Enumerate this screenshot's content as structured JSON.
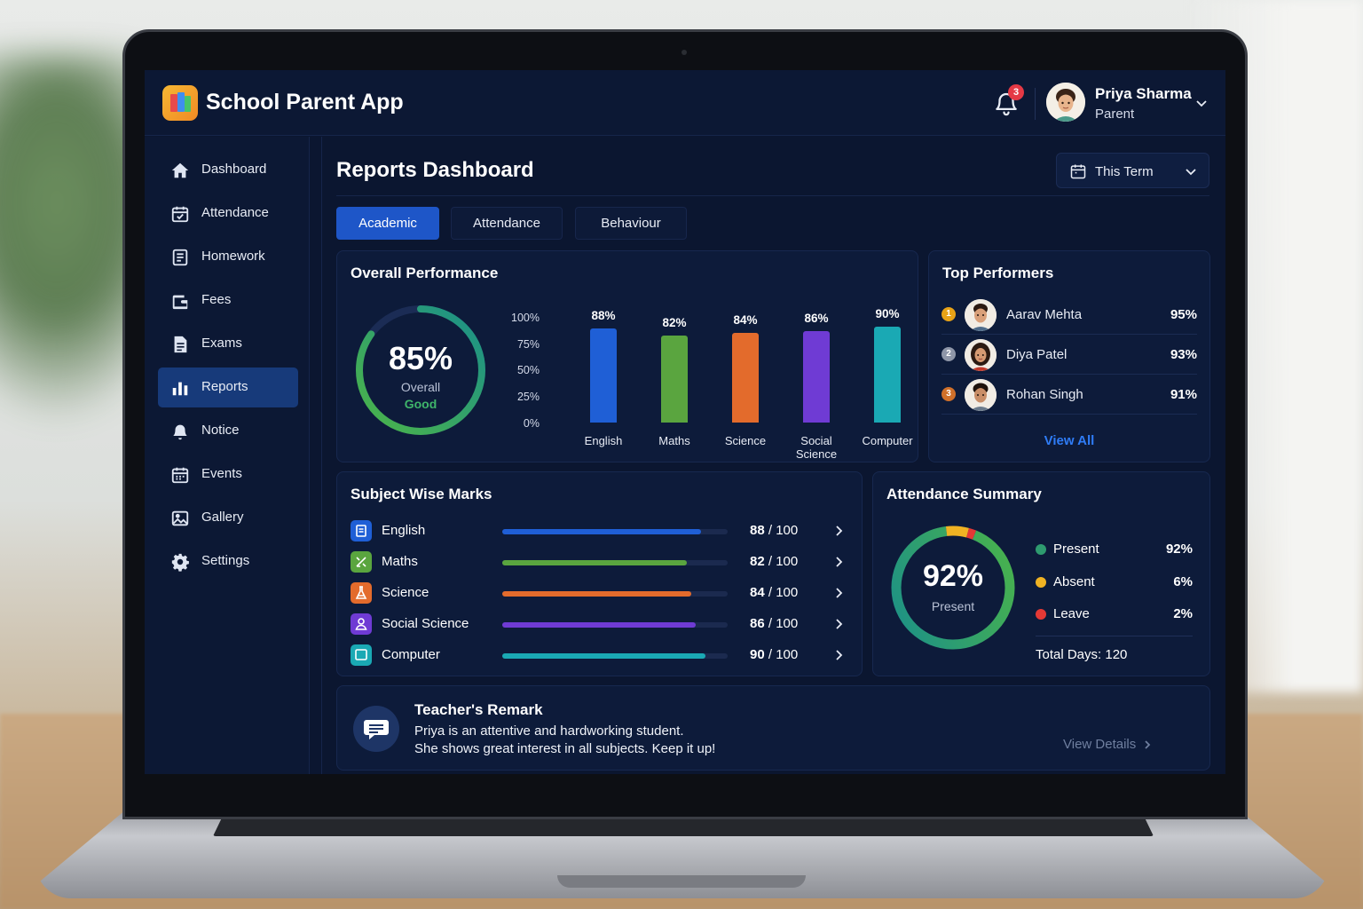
{
  "app": {
    "title": "School Parent App",
    "notification_count": "3"
  },
  "user": {
    "name": "Priya Sharma",
    "role": "Parent"
  },
  "sidebar": {
    "items": [
      {
        "label": "Dashboard",
        "icon": "home-icon"
      },
      {
        "label": "Attendance",
        "icon": "calendar-check-icon"
      },
      {
        "label": "Homework",
        "icon": "homework-icon"
      },
      {
        "label": "Fees",
        "icon": "wallet-icon"
      },
      {
        "label": "Exams",
        "icon": "document-icon"
      },
      {
        "label": "Reports",
        "icon": "bar-chart-icon",
        "active": true
      },
      {
        "label": "Notice",
        "icon": "bell-icon"
      },
      {
        "label": "Events",
        "icon": "calendar-icon"
      },
      {
        "label": "Gallery",
        "icon": "image-icon"
      },
      {
        "label": "Settings",
        "icon": "gear-icon"
      }
    ]
  },
  "page": {
    "title": "Reports Dashboard",
    "term_filter": "This Term"
  },
  "tabs": [
    {
      "label": "Academic",
      "active": true
    },
    {
      "label": "Attendance",
      "active": false
    },
    {
      "label": "Behaviour",
      "active": false
    }
  ],
  "overall": {
    "title": "Overall Performance",
    "percent_label": "85%",
    "percent_value": 85,
    "caption": "Overall",
    "grade": "Good"
  },
  "chart_data": {
    "type": "bar",
    "title": "Overall Performance",
    "categories": [
      "English",
      "Maths",
      "Science",
      "Social Science",
      "Computer"
    ],
    "category_labels": [
      [
        "English"
      ],
      [
        "Maths"
      ],
      [
        "Science"
      ],
      [
        "Social",
        "Science"
      ],
      [
        "Computer"
      ]
    ],
    "values": [
      88,
      82,
      84,
      86,
      90
    ],
    "value_labels": [
      "88%",
      "82%",
      "84%",
      "86%",
      "90%"
    ],
    "colors": [
      "#1f5fd6",
      "#5aa53f",
      "#e36b2c",
      "#6f3bd4",
      "#1aa9b4"
    ],
    "ylim": [
      0,
      100
    ],
    "yticks": [
      "100%",
      "75%",
      "50%",
      "25%",
      "0%"
    ],
    "grid": false
  },
  "top_performers": {
    "title": "Top Performers",
    "items": [
      {
        "rank": "1",
        "name": "Aarav Mehta",
        "score": "95%"
      },
      {
        "rank": "2",
        "name": "Diya Patel",
        "score": "93%"
      },
      {
        "rank": "3",
        "name": "Rohan Singh",
        "score": "91%"
      }
    ],
    "view_all": "View All"
  },
  "subject_marks": {
    "title": "Subject Wise Marks",
    "items": [
      {
        "name": "English",
        "score": "88",
        "total": "100",
        "fraction": 0.88,
        "color": "#1f5fd6"
      },
      {
        "name": "Maths",
        "score": "82",
        "total": "100",
        "fraction": 0.82,
        "color": "#5aa53f"
      },
      {
        "name": "Science",
        "score": "84",
        "total": "100",
        "fraction": 0.84,
        "color": "#e36b2c"
      },
      {
        "name": "Social Science",
        "score": "86",
        "total": "100",
        "fraction": 0.86,
        "color": "#6f3bd4"
      },
      {
        "name": "Computer",
        "score": "90",
        "total": "100",
        "fraction": 0.9,
        "color": "#1aa9b4"
      }
    ]
  },
  "attendance": {
    "title": "Attendance Summary",
    "percent_label": "92%",
    "caption": "Present",
    "items": [
      {
        "label": "Present",
        "value": "92%",
        "fraction": 0.92,
        "color": "#2e9b6f"
      },
      {
        "label": "Absent",
        "value": "6%",
        "fraction": 0.06,
        "color": "#f0b323"
      },
      {
        "label": "Leave",
        "value": "2%",
        "fraction": 0.02,
        "color": "#e53935"
      }
    ],
    "total_days": "Total Days: 120"
  },
  "remark": {
    "title": "Teacher's Remark",
    "lines": [
      "Priya is an attentive and hardworking student.",
      "She shows great interest in all subjects. Keep it up!"
    ],
    "view_details": "View Details"
  }
}
